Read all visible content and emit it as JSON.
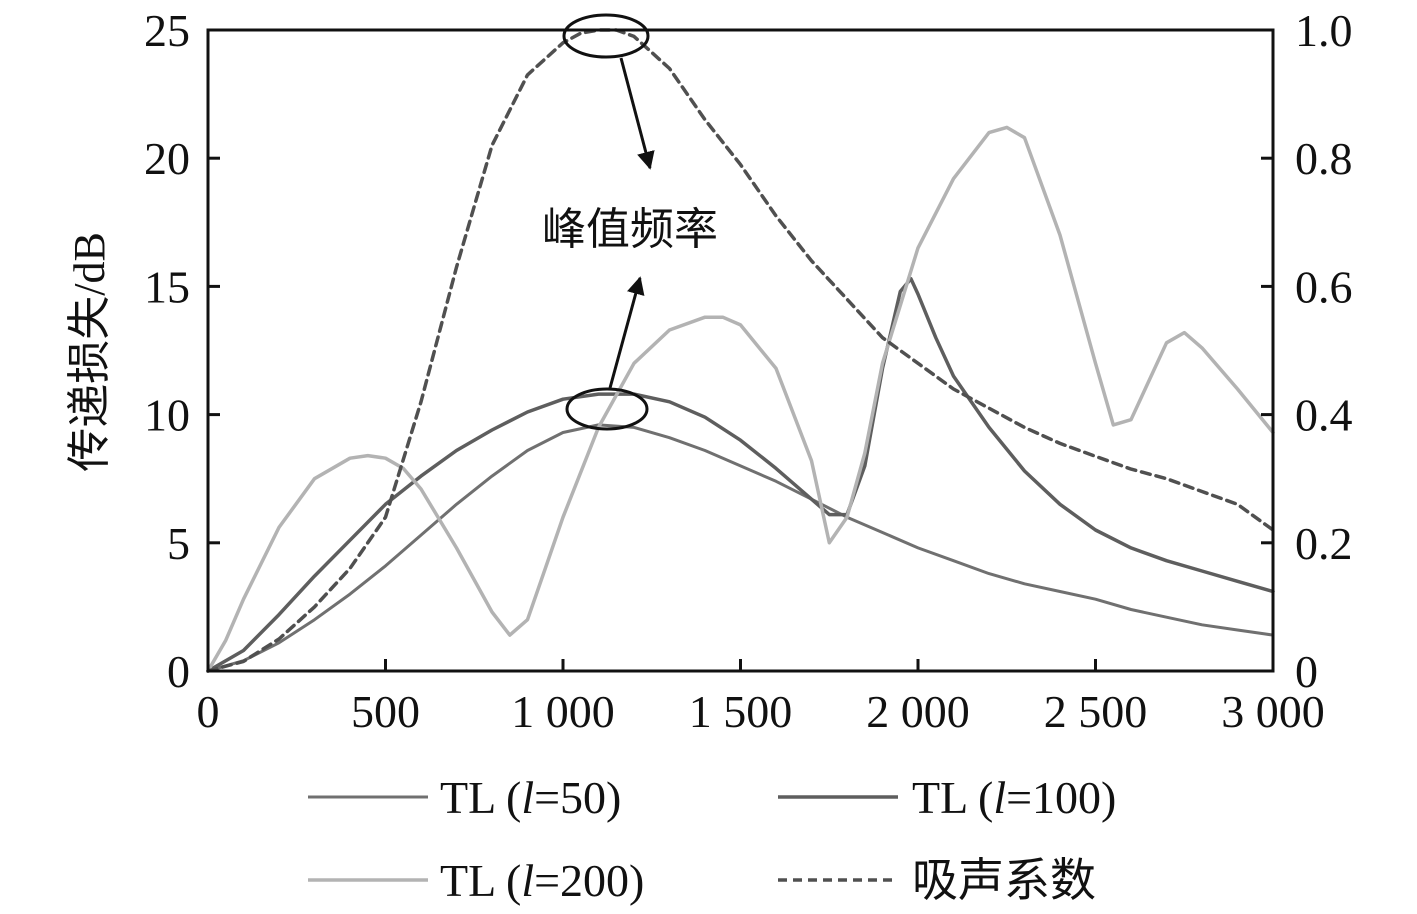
{
  "chart_data": {
    "type": "line",
    "title": "",
    "xlabel": "",
    "ylabel": "传递损失/dB",
    "y2label": "",
    "xlim": [
      0,
      3000
    ],
    "ylim": [
      0,
      25
    ],
    "y2lim": [
      0,
      1.0
    ],
    "grid": false,
    "legend_position": "bottom",
    "x_ticks": [
      {
        "value": 0,
        "label": "0"
      },
      {
        "value": 500,
        "label": "500"
      },
      {
        "value": 1000,
        "label": "1 000"
      },
      {
        "value": 1500,
        "label": "1 500"
      },
      {
        "value": 2000,
        "label": "2 000"
      },
      {
        "value": 2500,
        "label": "2 500"
      },
      {
        "value": 3000,
        "label": "3 000"
      }
    ],
    "y_ticks": [
      {
        "value": 0,
        "label": "0"
      },
      {
        "value": 5,
        "label": "5"
      },
      {
        "value": 10,
        "label": "10"
      },
      {
        "value": 15,
        "label": "15"
      },
      {
        "value": 20,
        "label": "20"
      },
      {
        "value": 25,
        "label": "25"
      }
    ],
    "y2_ticks": [
      {
        "value": 0,
        "label": "0"
      },
      {
        "value": 0.2,
        "label": "0.2"
      },
      {
        "value": 0.4,
        "label": "0.4"
      },
      {
        "value": 0.6,
        "label": "0.6"
      },
      {
        "value": 0.8,
        "label": "0.8"
      },
      {
        "value": 1.0,
        "label": "1.0"
      }
    ],
    "series": [
      {
        "name": "TL (l=50)",
        "legend_parts": [
          "TL (",
          "l",
          "=50)"
        ],
        "axis": "left",
        "color": "#707070",
        "style": "solid-thin",
        "x": [
          0,
          100,
          200,
          300,
          400,
          500,
          600,
          700,
          800,
          900,
          1000,
          1100,
          1200,
          1300,
          1400,
          1500,
          1600,
          1700,
          1800,
          1900,
          2000,
          2100,
          2200,
          2300,
          2400,
          2500,
          2600,
          2700,
          2800,
          2900,
          3000
        ],
        "y": [
          0,
          0.4,
          1.1,
          2.0,
          3.0,
          4.1,
          5.3,
          6.5,
          7.6,
          8.6,
          9.3,
          9.6,
          9.5,
          9.1,
          8.6,
          8.0,
          7.4,
          6.7,
          6.0,
          5.4,
          4.8,
          4.3,
          3.8,
          3.4,
          3.1,
          2.8,
          2.4,
          2.1,
          1.8,
          1.6,
          1.4
        ]
      },
      {
        "name": "TL (l=100)",
        "legend_parts": [
          "TL (",
          "l",
          "=100)"
        ],
        "axis": "left",
        "color": "#5e5e5e",
        "style": "solid-thick",
        "x": [
          0,
          100,
          200,
          300,
          400,
          500,
          600,
          700,
          800,
          900,
          1000,
          1100,
          1200,
          1300,
          1400,
          1500,
          1600,
          1700,
          1750,
          1800,
          1850,
          1900,
          1950,
          1980,
          2000,
          2050,
          2100,
          2200,
          2300,
          2400,
          2500,
          2600,
          2700,
          2800,
          2900,
          3000
        ],
        "y": [
          0,
          0.8,
          2.2,
          3.7,
          5.1,
          6.5,
          7.6,
          8.6,
          9.4,
          10.1,
          10.6,
          10.8,
          10.8,
          10.5,
          9.9,
          9.0,
          7.9,
          6.7,
          6.1,
          6.1,
          8.0,
          11.8,
          14.8,
          15.3,
          14.7,
          13.0,
          11.5,
          9.5,
          7.8,
          6.5,
          5.5,
          4.8,
          4.3,
          3.9,
          3.5,
          3.1
        ]
      },
      {
        "name": "TL (l=200)",
        "legend_parts": [
          "TL (",
          "l",
          "=200)"
        ],
        "axis": "left",
        "color": "#b3b3b3",
        "style": "solid-thick",
        "x": [
          0,
          50,
          100,
          200,
          300,
          400,
          450,
          500,
          550,
          600,
          700,
          800,
          850,
          900,
          950,
          1000,
          1100,
          1200,
          1300,
          1400,
          1450,
          1500,
          1600,
          1700,
          1750,
          1800,
          1850,
          1900,
          2000,
          2100,
          2200,
          2250,
          2300,
          2400,
          2500,
          2550,
          2600,
          2700,
          2750,
          2800,
          2900,
          3000
        ],
        "y": [
          0,
          1.2,
          2.8,
          5.6,
          7.5,
          8.3,
          8.4,
          8.3,
          7.9,
          7.1,
          4.8,
          2.3,
          1.4,
          2.0,
          4.0,
          6.0,
          9.5,
          12.0,
          13.3,
          13.8,
          13.8,
          13.5,
          11.8,
          8.2,
          5.0,
          6.0,
          8.5,
          12.0,
          16.5,
          19.2,
          21.0,
          21.2,
          20.8,
          17.0,
          12.0,
          9.6,
          9.8,
          12.8,
          13.2,
          12.6,
          11.0,
          9.3
        ]
      },
      {
        "name": "吸声系数",
        "legend_parts": [
          "吸声系数"
        ],
        "axis": "right",
        "color": "#505050",
        "style": "dashed",
        "x": [
          0,
          100,
          200,
          300,
          400,
          500,
          550,
          600,
          700,
          800,
          900,
          1000,
          1050,
          1100,
          1150,
          1200,
          1300,
          1400,
          1500,
          1600,
          1700,
          1800,
          1900,
          2000,
          2100,
          2200,
          2300,
          2400,
          2500,
          2600,
          2700,
          2800,
          2900,
          3000
        ],
        "y": [
          0,
          0.015,
          0.05,
          0.1,
          0.16,
          0.24,
          0.33,
          0.42,
          0.63,
          0.82,
          0.93,
          0.98,
          0.995,
          1.0,
          1.0,
          0.99,
          0.94,
          0.86,
          0.79,
          0.71,
          0.64,
          0.58,
          0.52,
          0.48,
          0.44,
          0.41,
          0.38,
          0.355,
          0.335,
          0.315,
          0.3,
          0.28,
          0.26,
          0.22
        ]
      }
    ],
    "annotations": [
      {
        "text": "峰值频率"
      }
    ]
  }
}
